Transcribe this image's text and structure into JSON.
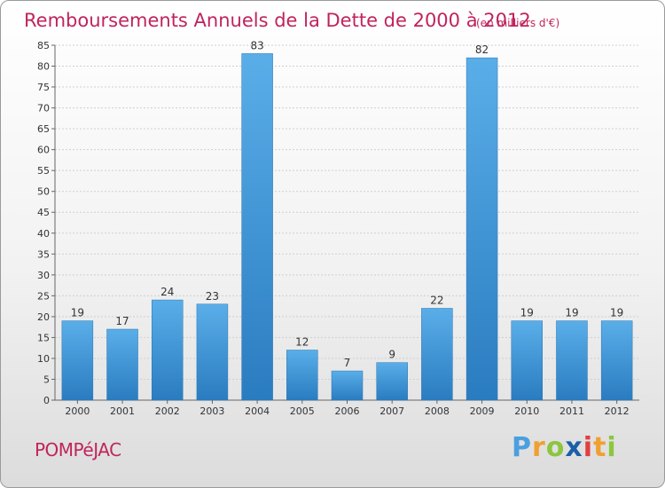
{
  "chart_data": {
    "type": "bar",
    "title": "Remboursements Annuels de la Dette de 2000 à 2012",
    "subtitle": "(en milliers d'€)",
    "categories": [
      "2000",
      "2001",
      "2002",
      "2003",
      "2004",
      "2005",
      "2006",
      "2007",
      "2008",
      "2009",
      "2010",
      "2011",
      "2012"
    ],
    "values": [
      19,
      17,
      24,
      23,
      83,
      12,
      7,
      9,
      22,
      82,
      19,
      19,
      19
    ],
    "value_labels": [
      "19",
      "17",
      "24",
      "23",
      "83",
      "12",
      "7",
      "9",
      "22",
      "82",
      "19",
      "19",
      "19"
    ],
    "ylim": [
      0,
      85
    ],
    "yticks": [
      "0",
      "5",
      "10",
      "15",
      "20",
      "25",
      "30",
      "35",
      "40",
      "45",
      "50",
      "55",
      "60",
      "65",
      "70",
      "75",
      "80",
      "85"
    ],
    "grid": true,
    "bar_color": "#3d95d6"
  },
  "footer": {
    "commune": "POMPéJAC",
    "brand_letters": [
      "P",
      "r",
      "o",
      "x",
      "i",
      "t",
      "i"
    ],
    "brand_colors": [
      "#4a9fe0",
      "#f0a030",
      "#8cc63f",
      "#1a5fa8",
      "#e23f3f",
      "#f0a030",
      "#8cc63f"
    ]
  }
}
